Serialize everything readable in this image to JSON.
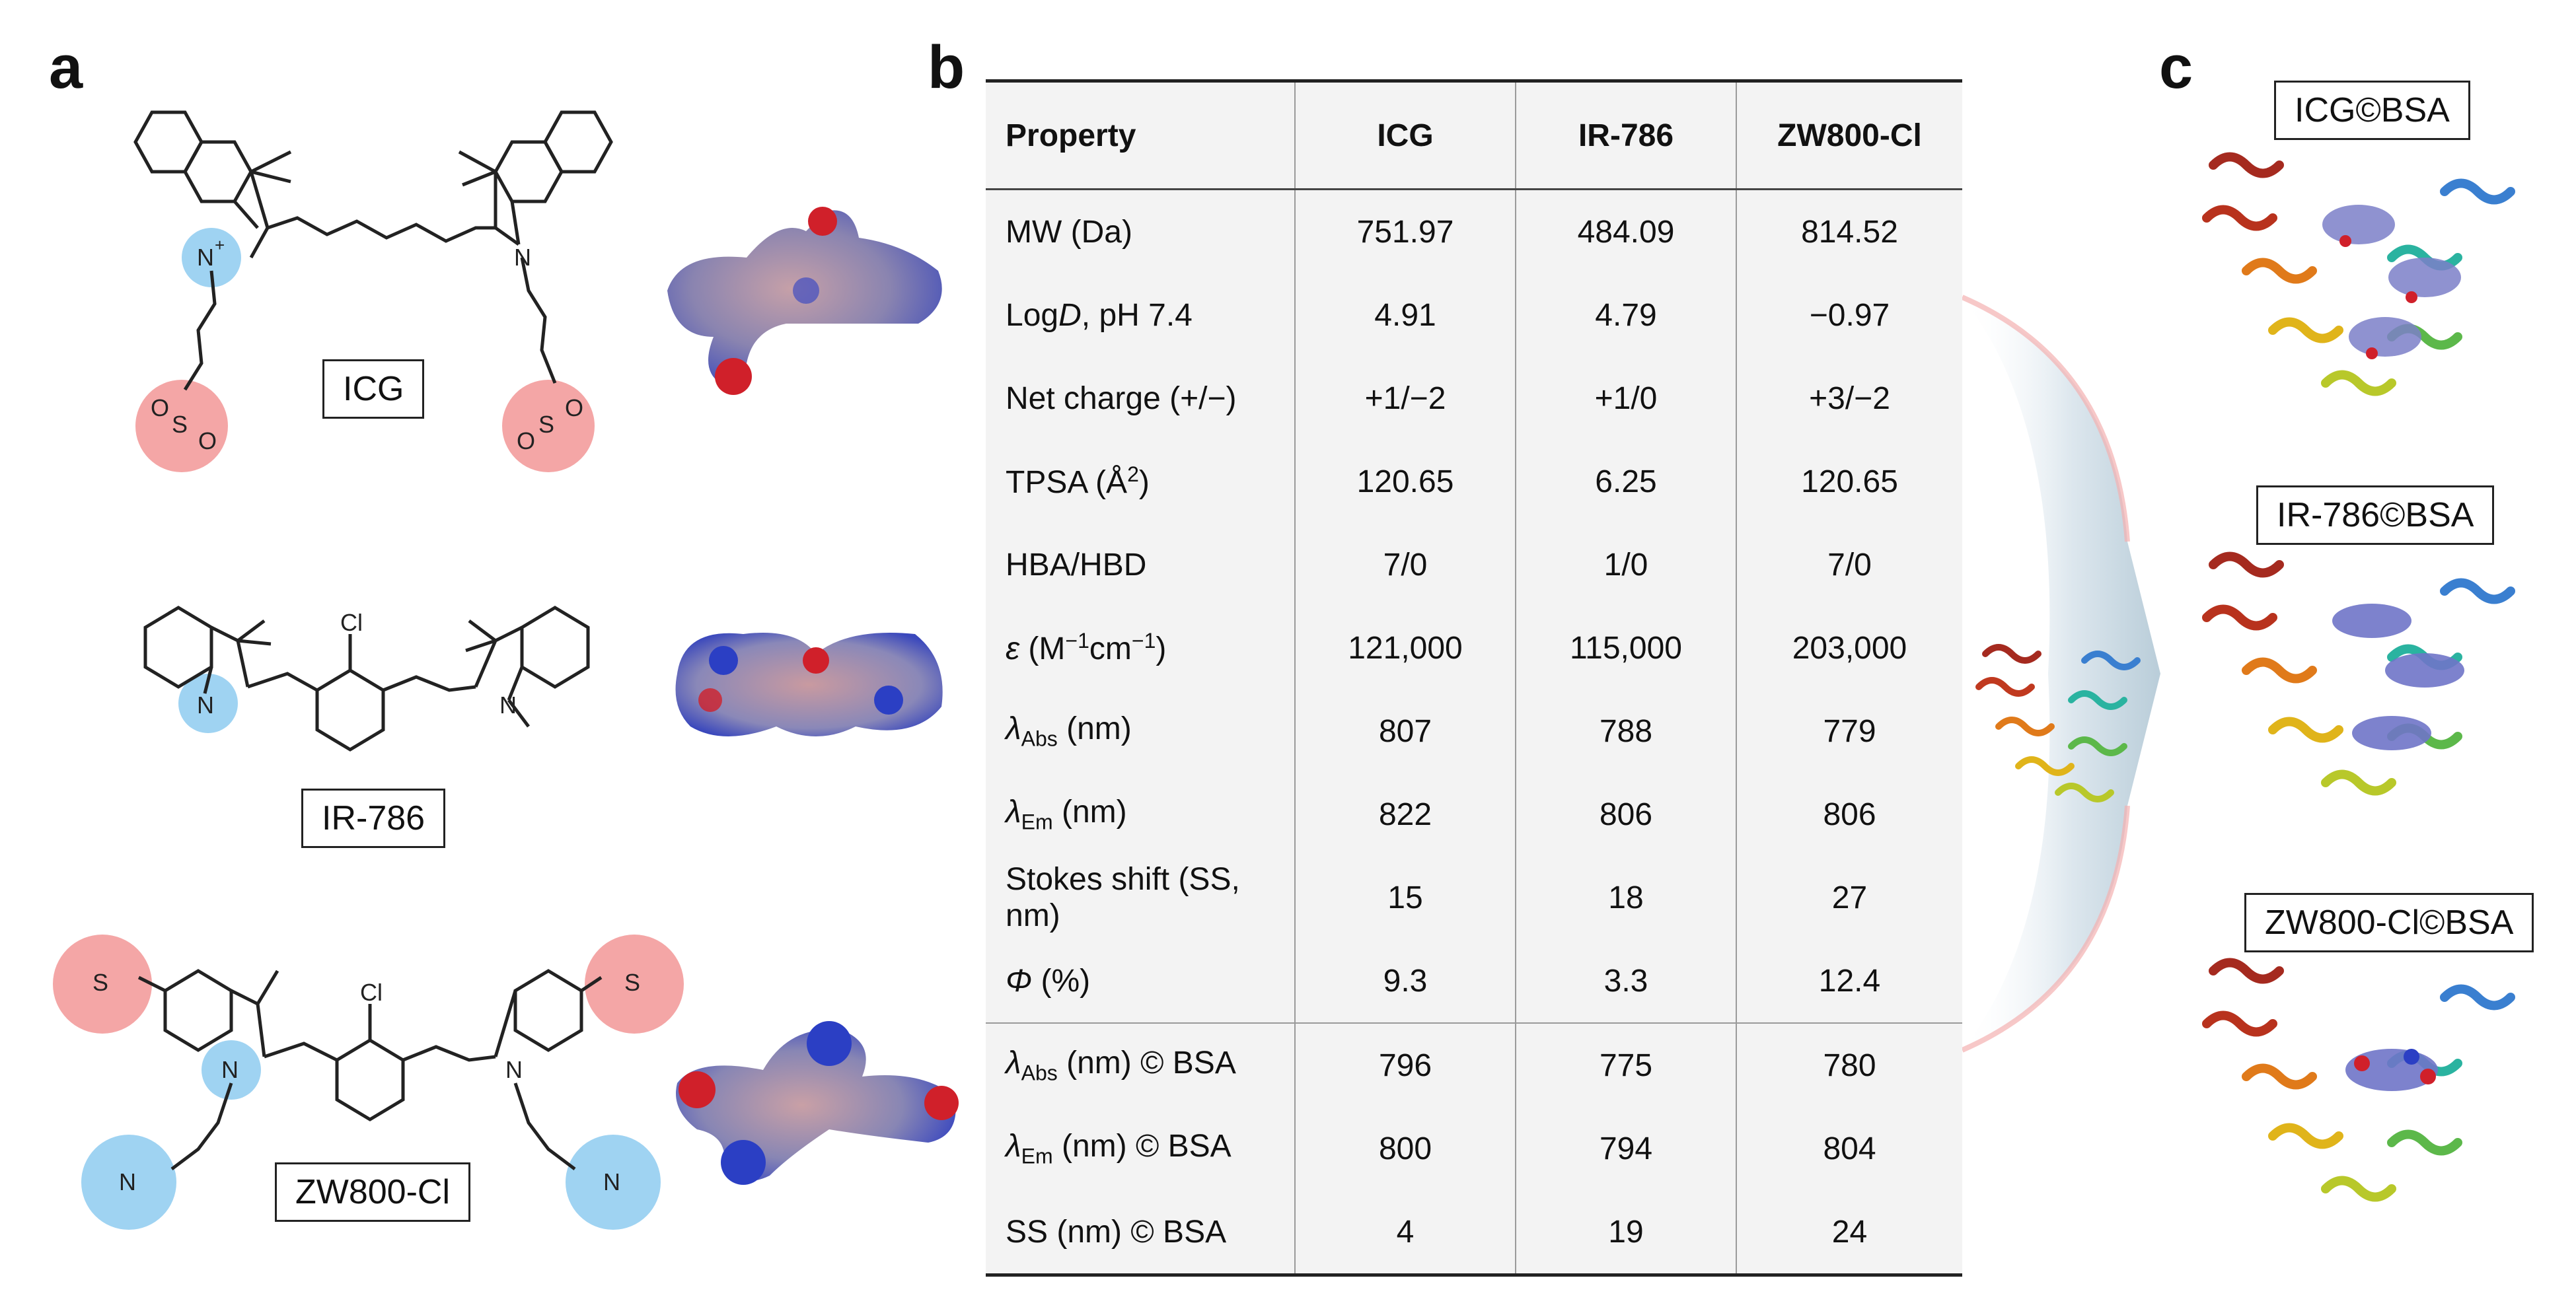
{
  "panels": {
    "a": "a",
    "b": "b",
    "c": "c"
  },
  "molecules": {
    "icg": {
      "name": "ICG"
    },
    "ir786": {
      "name": "IR-786"
    },
    "zw800": {
      "name": "ZW800-Cl"
    }
  },
  "atoms": {
    "n_plus": "N",
    "plus": "+",
    "n": "N",
    "cl": "Cl",
    "so3": "S",
    "o": "O",
    "minus": "-"
  },
  "table": {
    "headers": [
      "Property",
      "ICG",
      "IR-786",
      "ZW800-Cl"
    ],
    "rows": [
      {
        "label": "MW (Da)",
        "values": [
          "751.97",
          "484.09",
          "814.52"
        ]
      },
      {
        "label_a": "Log",
        "label_it": "D",
        "label_b": ", pH 7.4",
        "values": [
          "4.91",
          "4.79",
          "−0.97"
        ]
      },
      {
        "label": "Net charge (+/−)",
        "values": [
          "+1/−2",
          "+1/0",
          "+3/−2"
        ]
      },
      {
        "label_a": "TPSA (Å",
        "label_sup": "2",
        "label_b": ")",
        "values": [
          "120.65",
          "6.25",
          "120.65"
        ]
      },
      {
        "label": "HBA/HBD",
        "values": [
          "7/0",
          "1/0",
          "7/0"
        ]
      },
      {
        "label_it": "ε",
        "label_a": " (M",
        "label_sup": "−1",
        "label_b": "cm",
        "label_sup2": "−1",
        "label_c": ")",
        "values": [
          "121,000",
          "115,000",
          "203,000"
        ]
      },
      {
        "label_it": "λ",
        "label_sub": "Abs",
        "label_a": " (nm)",
        "values": [
          "807",
          "788",
          "779"
        ]
      },
      {
        "label_it": "λ",
        "label_sub": "Em",
        "label_a": " (nm)",
        "values": [
          "822",
          "806",
          "806"
        ]
      },
      {
        "label": "Stokes shift (SS, nm)",
        "values": [
          "15",
          "18",
          "27"
        ]
      },
      {
        "label_it": "Φ",
        "label_a": " (%)",
        "values": [
          "9.3",
          "3.3",
          "12.4"
        ]
      },
      {
        "label_it": "λ",
        "label_sub": "Abs",
        "label_a": " (nm) © BSA",
        "values": [
          "796",
          "775",
          "780"
        ]
      },
      {
        "label_it": "λ",
        "label_sub": "Em",
        "label_a": " (nm) © BSA",
        "values": [
          "800",
          "794",
          "804"
        ]
      },
      {
        "label": "SS (nm) © BSA",
        "values": [
          "4",
          "19",
          "24"
        ]
      }
    ]
  },
  "complexes": {
    "icg": "ICG©BSA",
    "ir786": "IR-786©BSA",
    "zw800": "ZW800-Cl©BSA"
  },
  "colors": {
    "anion_halo": "#f4a6a6",
    "cation_halo": "#9fd3f2",
    "surface_red": "#d0202a",
    "surface_blue": "#2b3fc4",
    "arrow": "#c8d8e4"
  }
}
